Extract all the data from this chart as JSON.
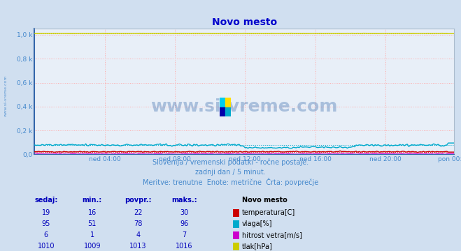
{
  "title": "Novo mesto",
  "title_color": "#0000cc",
  "bg_color": "#d0dff0",
  "plot_bg_color": "#e8eff8",
  "grid_color": "#ffaaaa",
  "xlabel_color": "#4488cc",
  "watermark_text": "www.si-vreme.com",
  "watermark_color": "#3366aa",
  "watermark_alpha": 0.35,
  "subtitle1": "Slovenija / vremenski podatki - ročne postaje.",
  "subtitle2": "zadnji dan / 5 minut.",
  "subtitle3": "Meritve: trenutne  Enote: metrične  Črta: povprečje",
  "subtitle_color": "#4488cc",
  "n_points": 288,
  "x_ticks_labels": [
    "ned 04:00",
    "ned 08:00",
    "ned 12:00",
    "ned 16:00",
    "ned 20:00",
    "pon 00:00"
  ],
  "x_ticks_pos": [
    48,
    96,
    144,
    192,
    240,
    287
  ],
  "ylim": [
    0,
    1050
  ],
  "yticks": [
    0,
    200,
    400,
    600,
    800,
    1000
  ],
  "ytick_labels": [
    "0,0",
    "0,2 k",
    "0,4 k",
    "0,6 k",
    "0,8 k",
    "1,0 k"
  ],
  "series": {
    "temperatura": {
      "color": "#cc0000",
      "min": 16,
      "avg": 22,
      "max": 30,
      "current": 19,
      "label": "temperatura[C]",
      "legend_color": "#cc0000"
    },
    "vlaga": {
      "color": "#00aacc",
      "min": 51,
      "avg": 78,
      "max": 96,
      "current": 95,
      "label": "vlaga[%]",
      "legend_color": "#00aacc"
    },
    "hitrost_vetra": {
      "color": "#cc00cc",
      "min": 1,
      "avg": 4,
      "max": 7,
      "current": 6,
      "label": "hitrost vetra[m/s]",
      "legend_color": "#cc00cc"
    },
    "tlak": {
      "color": "#cccc00",
      "min": 1009,
      "avg": 1013,
      "max": 1016,
      "current": 1010,
      "label": "tlak[hPa]",
      "legend_color": "#cccc00"
    }
  },
  "table_headers": [
    "sedaj:",
    "min.:",
    "povpr.:",
    "maks.:"
  ],
  "table_color": "#0000bb",
  "legend_header": "Novo mesto",
  "left_label": "www.si-vreme.com",
  "left_label_color": "#4488cc",
  "icon_colors": [
    "#00ccee",
    "#ffdd00",
    "#0000aa",
    "#00ccee"
  ],
  "border_color": "#aabbcc"
}
